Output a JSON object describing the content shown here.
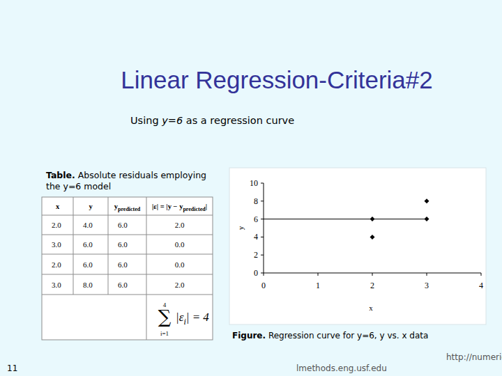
{
  "slide": {
    "title": "Linear Regression-Criteria#2",
    "subtitle": [
      "Using ",
      "y=6",
      " as a regression curve"
    ],
    "table_caption": [
      "Table.",
      " Absolute residuals employing the y=6 model"
    ],
    "table": {
      "headers": [
        [
          "x"
        ],
        [
          "y"
        ],
        [
          "y",
          "predicted"
        ],
        [
          "|ε| = |y − y",
          "predicted",
          "|"
        ]
      ],
      "rows": [
        [
          "2.0",
          "4.0",
          "6.0",
          "2.0"
        ],
        [
          "3.0",
          "6.0",
          "6.0",
          "0.0"
        ],
        [
          "2.0",
          "6.0",
          "6.0",
          "0.0"
        ],
        [
          "3.0",
          "8.0",
          "6.0",
          "2.0"
        ]
      ],
      "sum": {
        "symbol": "∑",
        "upper": "4",
        "lower": "i=1",
        "term": [
          "|ε",
          "i",
          "| = 4"
        ]
      }
    },
    "figure_caption": [
      "Figure.",
      " Regression curve for y=6, y vs. x data"
    ],
    "page_number": "11",
    "url": [
      "http://numerica",
      "lmethods.eng.usf.edu"
    ]
  },
  "chart_data": {
    "type": "scatter",
    "x_label": "x",
    "y_label": "y",
    "xlim": [
      0,
      4
    ],
    "ylim": [
      0,
      10
    ],
    "xticks": [
      0,
      1,
      2,
      3,
      4
    ],
    "yticks": [
      0,
      2,
      4,
      6,
      8,
      10
    ],
    "grid": false,
    "series": [
      {
        "x": [
          2,
          3,
          2,
          3
        ],
        "values": [
          4,
          6,
          6,
          8
        ],
        "marker": "diamond",
        "color": "#000000"
      },
      {
        "type": "line",
        "x": [
          0,
          3
        ],
        "values": [
          6,
          6
        ],
        "color": "#000000",
        "line_style": "solid"
      }
    ]
  }
}
